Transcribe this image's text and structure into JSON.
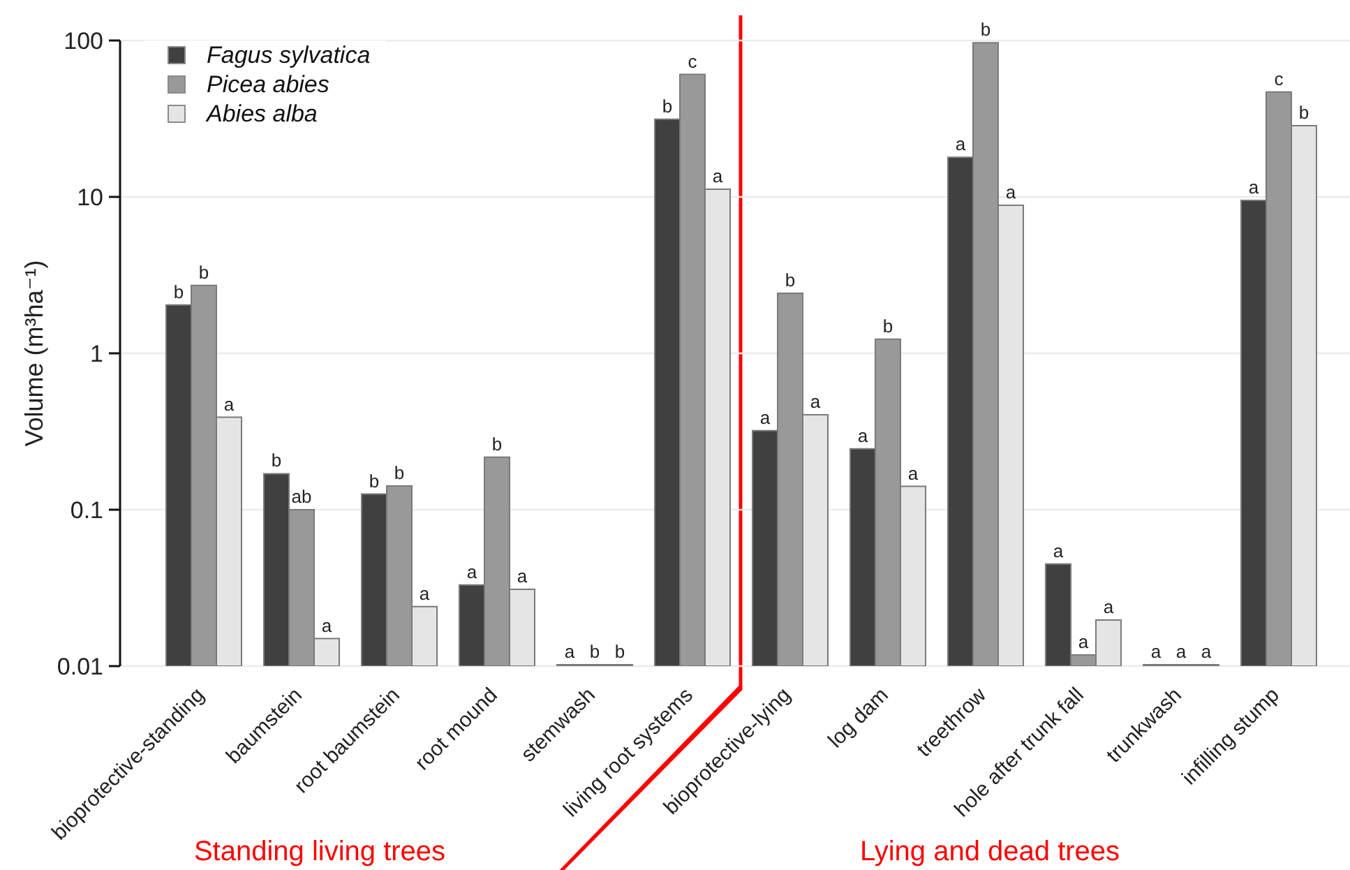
{
  "chart_data": {
    "type": "bar",
    "ylabel": "Volume (m³ha⁻¹)",
    "categories": [
      "bioprotective-standing",
      "baumstein",
      "root baumstein",
      "root mound",
      "stemwash",
      "living root systems",
      "bioprotective-lying",
      "log dam",
      "treethrow",
      "hole after trunk fall",
      "trunkwash",
      "infilling stump"
    ],
    "series": [
      {
        "name": "Fagus sylvatica",
        "color": "#404040",
        "values": [
          2.04,
          0.17,
          0.126,
          0.033,
          0.01,
          31.4,
          0.32,
          0.245,
          17.9,
          0.045,
          0.01,
          9.5
        ],
        "value_labels": [
          "b",
          "b",
          "b",
          "a",
          "a",
          "b",
          "a",
          "a",
          "a",
          "a",
          "a",
          "a"
        ]
      },
      {
        "name": "Picea abies",
        "color": "#999999",
        "values": [
          2.72,
          0.1,
          0.142,
          0.217,
          0.01,
          60.7,
          2.42,
          1.23,
          96.6,
          0.0118,
          0.01,
          46.9
        ],
        "value_labels": [
          "b",
          "ab",
          "b",
          "b",
          "b",
          "c",
          "b",
          "b",
          "b",
          "a",
          "a",
          "c"
        ]
      },
      {
        "name": "Abies alba",
        "color": "#e5e5e5",
        "values": [
          0.39,
          0.015,
          0.024,
          0.031,
          0.01,
          11.2,
          0.405,
          0.141,
          8.84,
          0.0197,
          0.01,
          28.5
        ],
        "value_labels": [
          "a",
          "a",
          "a",
          "a",
          "b",
          "a",
          "a",
          "a",
          "a",
          "a",
          "a",
          "b"
        ]
      }
    ],
    "log": "y",
    "ylim": [
      0.01,
      100
    ],
    "yticks": [
      0.01,
      0.1,
      1,
      10,
      100
    ],
    "grid": "y",
    "legend": "top left",
    "annotations": [
      "Standing living trees",
      "Lying and dead trees"
    ]
  }
}
